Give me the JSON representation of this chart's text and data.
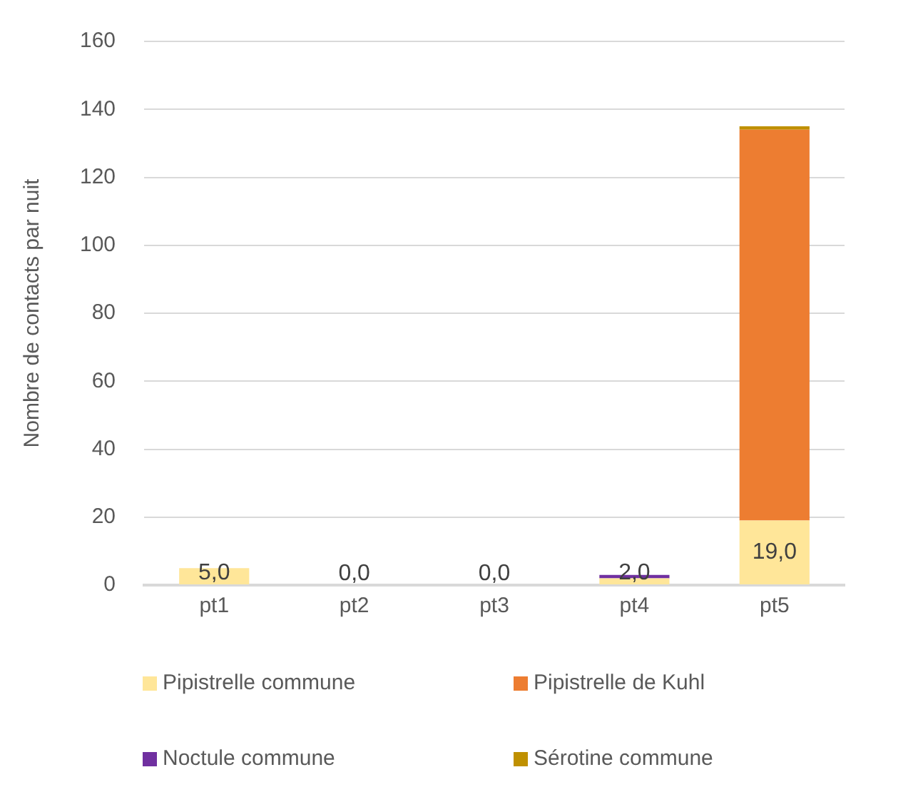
{
  "chart_data": {
    "type": "bar",
    "stacked": true,
    "ylabel": "Nombre de contacts par nuit",
    "categories": [
      "pt1",
      "pt2",
      "pt3",
      "pt4",
      "pt5"
    ],
    "ylim": [
      0,
      160
    ],
    "yticks": [
      0,
      20,
      40,
      60,
      80,
      100,
      120,
      140,
      160
    ],
    "grid": "y",
    "legend": "bottom",
    "series": [
      {
        "name": "Pipistrelle commune",
        "color": "#ffe699",
        "values": [
          5,
          0,
          0,
          2,
          19
        ],
        "value_labels": [
          "5,0",
          "0,0",
          "0,0",
          "2,0",
          "19,0"
        ]
      },
      {
        "name": "Pipistrelle de Kuhl",
        "color": "#ed7d31",
        "values": [
          0,
          0,
          0,
          0,
          115
        ]
      },
      {
        "name": "Noctule commune",
        "color": "#7030a0",
        "values": [
          0,
          0,
          0,
          1,
          0
        ]
      },
      {
        "name": "Sérotine commune",
        "color": "#bf9000",
        "values": [
          0,
          0,
          0,
          0,
          1
        ]
      }
    ]
  }
}
